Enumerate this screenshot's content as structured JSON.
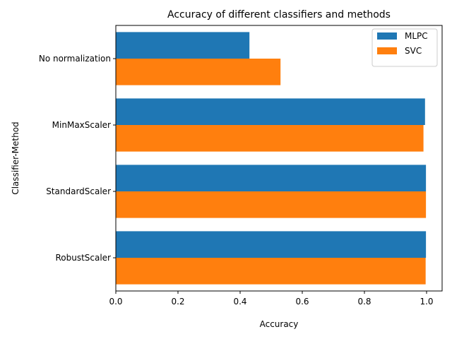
{
  "chart_data": {
    "type": "bar",
    "orientation": "horizontal",
    "title": "Accuracy of different classifiers and methods",
    "xlabel": "Accuracy",
    "ylabel": "Classifier-Method",
    "categories": [
      "No normalization",
      "MinMaxScaler",
      "StandardScaler",
      "RobustScaler"
    ],
    "series": [
      {
        "name": "MLPC",
        "color": "#1f77b4",
        "values": [
          0.43,
          0.995,
          0.998,
          0.998
        ]
      },
      {
        "name": "SVC",
        "color": "#ff7f0e",
        "values": [
          0.53,
          0.99,
          0.998,
          0.997
        ]
      }
    ],
    "xlim": [
      0,
      1.05
    ],
    "xticks": [
      0.0,
      0.2,
      0.4,
      0.6,
      0.8,
      1.0
    ],
    "xtick_labels": [
      "0.0",
      "0.2",
      "0.4",
      "0.6",
      "0.8",
      "1.0"
    ],
    "grid": false,
    "legend_position": "top-right"
  }
}
